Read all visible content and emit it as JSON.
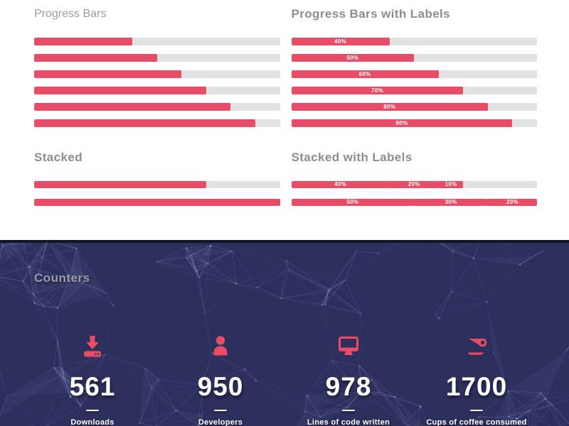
{
  "colors": {
    "accent": "#e84c66",
    "track": "#e2e2e2",
    "dark_bg": "#2d2f5d"
  },
  "sections": {
    "progress_plain": {
      "title": "Progress Bars",
      "values": [
        40,
        50,
        60,
        70,
        80,
        90
      ]
    },
    "progress_labeled": {
      "title": "Progress Bars with Labels",
      "values": [
        40,
        50,
        60,
        70,
        80,
        90
      ],
      "labels": [
        "40%",
        "50%",
        "60%",
        "70%",
        "80%",
        "90%"
      ]
    },
    "stacked_plain": {
      "title": "Stacked",
      "bars": [
        [
          {
            "value": 70
          }
        ],
        [
          {
            "value": 100
          }
        ]
      ]
    },
    "stacked_labeled": {
      "title": "Stacked with Labels",
      "bars": [
        [
          {
            "value": 40,
            "label": "40%"
          },
          {
            "value": 20,
            "label": "20%"
          },
          {
            "value": 10,
            "label": "10%"
          }
        ],
        [
          {
            "value": 50,
            "label": "50%"
          },
          {
            "value": 30,
            "label": "30%"
          },
          {
            "value": 20,
            "label": "20%"
          }
        ]
      ]
    },
    "counters": {
      "title": "Counters",
      "items": [
        {
          "icon": "download-icon",
          "value": "561",
          "label": "Downloads"
        },
        {
          "icon": "user-icon",
          "value": "950",
          "label": "Developers"
        },
        {
          "icon": "monitor-icon",
          "value": "978",
          "label": "Lines of code written"
        },
        {
          "icon": "coffee-icon",
          "value": "1700",
          "label": "Cups of coffee consumed"
        }
      ]
    }
  }
}
